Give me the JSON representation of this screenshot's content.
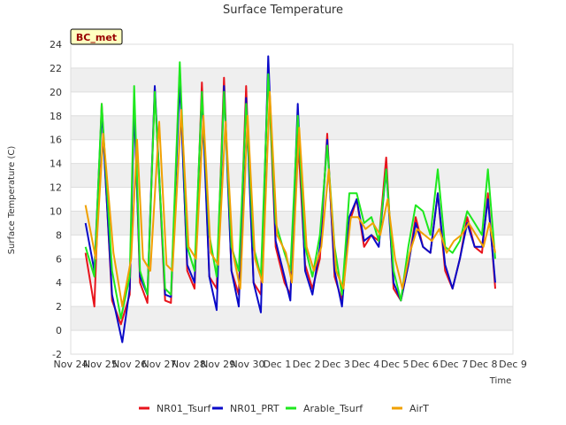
{
  "chart_data": {
    "type": "line",
    "title": "Surface Temperature",
    "xlabel": "Time",
    "ylabel": "Surface Temperature (C)",
    "badge": "BC_met",
    "ylim": [
      -2,
      24
    ],
    "yticks": [
      -2,
      0,
      2,
      4,
      6,
      8,
      10,
      12,
      14,
      16,
      18,
      20,
      22,
      24
    ],
    "xlim": [
      0,
      15
    ],
    "xticks": [
      {
        "v": 0,
        "label": "Nov 24"
      },
      {
        "v": 1,
        "label": "Nov 25"
      },
      {
        "v": 2,
        "label": "Nov 26"
      },
      {
        "v": 3,
        "label": "Nov 27"
      },
      {
        "v": 4,
        "label": "Nov 28"
      },
      {
        "v": 5,
        "label": "Nov 29"
      },
      {
        "v": 6,
        "label": "Nov 30"
      },
      {
        "v": 7,
        "label": "Dec 1"
      },
      {
        "v": 8,
        "label": "Dec 2"
      },
      {
        "v": 9,
        "label": "Dec 3"
      },
      {
        "v": 10,
        "label": "Dec 4"
      },
      {
        "v": 11,
        "label": "Dec 5"
      },
      {
        "v": 12,
        "label": "Dec 6"
      },
      {
        "v": 13,
        "label": "Dec 7"
      },
      {
        "v": 14,
        "label": "Dec 8"
      },
      {
        "v": 15,
        "label": "Dec 9"
      }
    ],
    "grid": true,
    "legend_position": "bottom",
    "series": [
      {
        "name": "NR01_Tsurf",
        "color": "#e8141c",
        "x": [
          0.5,
          0.8,
          1.05,
          1.4,
          1.7,
          2.0,
          2.15,
          2.35,
          2.6,
          2.85,
          3.2,
          3.4,
          3.7,
          3.95,
          4.2,
          4.45,
          4.7,
          4.95,
          5.2,
          5.45,
          5.7,
          5.95,
          6.2,
          6.45,
          6.7,
          6.95,
          7.25,
          7.45,
          7.7,
          7.95,
          8.2,
          8.45,
          8.7,
          8.95,
          9.2,
          9.45,
          9.7,
          9.95,
          10.2,
          10.45,
          10.7,
          10.95,
          11.2,
          11.45,
          11.7,
          11.95,
          12.2,
          12.45,
          12.7,
          12.95,
          13.2,
          13.45,
          13.7,
          13.95,
          14.15,
          14.4
        ],
        "y": [
          6.5,
          2.0,
          19.0,
          2.5,
          0.5,
          3.0,
          19.5,
          4.0,
          2.3,
          20.3,
          2.5,
          2.3,
          22.0,
          5.0,
          3.5,
          20.8,
          4.5,
          3.5,
          21.2,
          5.0,
          3.0,
          20.5,
          4.0,
          3.0,
          22.0,
          7.0,
          4.0,
          3.0,
          16.5,
          5.5,
          3.5,
          6.0,
          16.5,
          4.5,
          2.5,
          9.0,
          11.0,
          7.0,
          8.0,
          7.5,
          14.5,
          3.5,
          2.5,
          5.5,
          9.5,
          7.0,
          6.5,
          11.5,
          5.0,
          3.5,
          6.0,
          9.5,
          7.0,
          6.5,
          11.5,
          3.5
        ]
      },
      {
        "name": "NR01_PRT",
        "color": "#0a0ac8",
        "x": [
          0.5,
          0.8,
          1.05,
          1.4,
          1.75,
          2.0,
          2.15,
          2.35,
          2.6,
          2.85,
          3.2,
          3.4,
          3.7,
          3.95,
          4.2,
          4.45,
          4.7,
          4.95,
          5.2,
          5.45,
          5.7,
          5.95,
          6.2,
          6.45,
          6.7,
          6.95,
          7.25,
          7.45,
          7.7,
          7.95,
          8.2,
          8.45,
          8.7,
          8.95,
          9.2,
          9.45,
          9.7,
          9.95,
          10.2,
          10.45,
          10.7,
          10.95,
          11.2,
          11.45,
          11.7,
          11.95,
          12.2,
          12.45,
          12.7,
          12.95,
          13.2,
          13.45,
          13.7,
          13.95,
          14.15,
          14.4
        ],
        "y": [
          9.0,
          5.0,
          18.5,
          3.0,
          -1.0,
          3.5,
          19.0,
          4.5,
          3.0,
          20.5,
          3.0,
          2.8,
          21.0,
          5.5,
          4.0,
          20.0,
          4.5,
          1.7,
          20.5,
          5.0,
          2.0,
          19.5,
          4.0,
          1.5,
          23.0,
          7.5,
          4.5,
          2.5,
          19.0,
          5.0,
          3.0,
          7.0,
          16.0,
          5.0,
          2.0,
          9.5,
          11.0,
          7.5,
          8.0,
          7.0,
          13.5,
          4.0,
          2.5,
          5.5,
          9.0,
          7.0,
          6.5,
          11.5,
          5.5,
          3.5,
          6.0,
          9.0,
          7.0,
          7.0,
          11.0,
          4.0
        ]
      },
      {
        "name": "Arable_Tsurf",
        "color": "#1ee81e",
        "x": [
          0.5,
          0.8,
          1.05,
          1.4,
          1.7,
          2.0,
          2.15,
          2.35,
          2.6,
          2.85,
          3.2,
          3.4,
          3.7,
          3.95,
          4.2,
          4.45,
          4.7,
          4.95,
          5.2,
          5.45,
          5.7,
          5.95,
          6.2,
          6.45,
          6.7,
          6.95,
          7.25,
          7.45,
          7.7,
          7.95,
          8.2,
          8.45,
          8.7,
          8.95,
          9.2,
          9.45,
          9.7,
          9.95,
          10.2,
          10.45,
          10.7,
          10.95,
          11.2,
          11.45,
          11.7,
          11.95,
          12.2,
          12.45,
          12.7,
          12.95,
          13.2,
          13.45,
          13.7,
          13.95,
          14.15,
          14.4
        ],
        "y": [
          7.0,
          4.5,
          19.0,
          5.0,
          1.0,
          4.5,
          20.5,
          5.0,
          3.0,
          20.0,
          3.5,
          3.0,
          22.5,
          7.0,
          5.0,
          20.0,
          8.0,
          4.5,
          20.0,
          7.0,
          5.0,
          19.0,
          7.0,
          4.5,
          21.5,
          9.0,
          6.5,
          5.0,
          18.0,
          7.0,
          4.5,
          8.0,
          15.5,
          7.0,
          3.0,
          11.5,
          11.5,
          9.0,
          9.5,
          7.5,
          13.5,
          5.0,
          2.5,
          7.0,
          10.5,
          10.0,
          8.0,
          13.5,
          7.0,
          6.5,
          7.5,
          10.0,
          9.0,
          8.0,
          13.5,
          6.0
        ]
      },
      {
        "name": "AirT",
        "color": "#f0a000",
        "x": [
          0.5,
          0.85,
          1.1,
          1.45,
          1.75,
          2.05,
          2.25,
          2.45,
          2.7,
          3.0,
          3.25,
          3.45,
          3.75,
          4.0,
          4.25,
          4.5,
          4.75,
          5.0,
          5.25,
          5.5,
          5.75,
          6.0,
          6.25,
          6.5,
          6.75,
          7.0,
          7.3,
          7.5,
          7.75,
          8.0,
          8.25,
          8.5,
          8.75,
          9.0,
          9.25,
          9.5,
          9.75,
          10.0,
          10.25,
          10.5,
          10.75,
          11.0,
          11.25,
          11.5,
          11.75,
          12.0,
          12.25,
          12.5,
          12.75,
          13.0,
          13.25,
          13.5,
          13.75,
          14.0,
          14.2,
          14.4
        ],
        "y": [
          10.5,
          6.0,
          16.5,
          6.5,
          2.0,
          6.0,
          16.0,
          6.0,
          5.0,
          17.5,
          5.5,
          5.0,
          18.5,
          7.0,
          6.0,
          18.0,
          6.5,
          5.5,
          17.5,
          6.5,
          3.5,
          18.0,
          6.0,
          4.0,
          20.0,
          8.0,
          6.5,
          4.0,
          17.0,
          7.0,
          5.0,
          7.0,
          13.5,
          5.0,
          3.5,
          9.5,
          9.5,
          8.5,
          9.0,
          8.0,
          11.0,
          6.0,
          3.5,
          6.5,
          8.5,
          8.0,
          7.5,
          8.5,
          6.5,
          7.5,
          8.0,
          9.0,
          8.0,
          7.0,
          9.0,
          6.5
        ]
      }
    ]
  }
}
